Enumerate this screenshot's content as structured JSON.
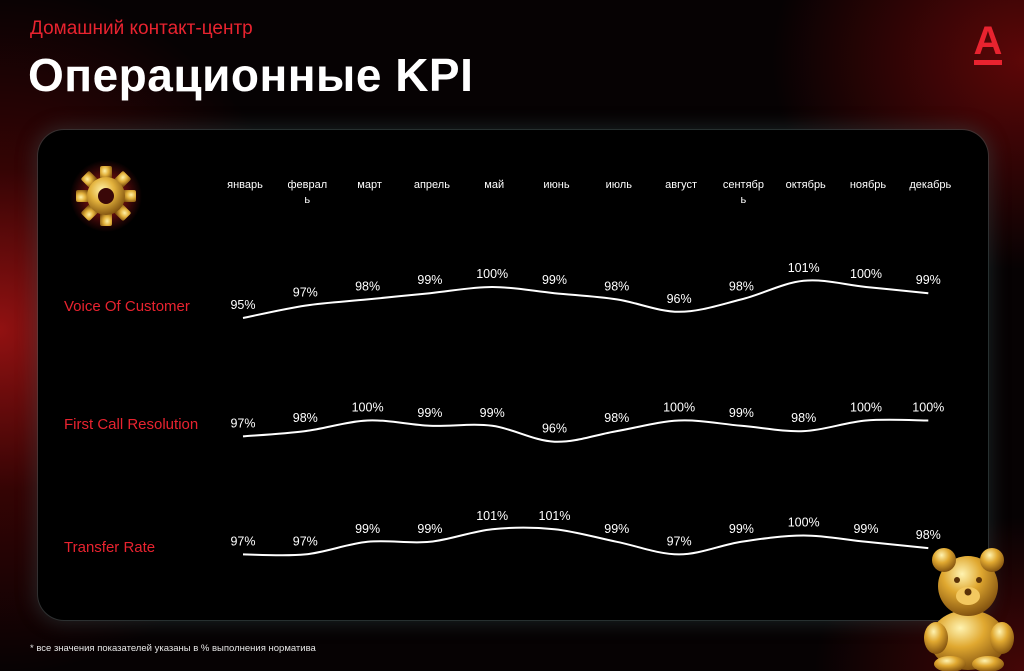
{
  "header": {
    "subtitle": "Домашний контакт-центр",
    "title": "Операционные KPI"
  },
  "brand": {
    "logo": "А",
    "accent": "#e8232f"
  },
  "icons": {
    "gear": "gear-icon",
    "bear": "gold-bear-figure"
  },
  "footnote": "* все значения показателей указаны в % выполнения норматива",
  "chart_data": {
    "type": "line",
    "categories": [
      "январь",
      "февраль",
      "март",
      "апрель",
      "май",
      "июнь",
      "июль",
      "август",
      "сентябрь",
      "октябрь",
      "ноябрь",
      "декабрь"
    ],
    "category_lines": [
      [
        "январь"
      ],
      [
        "феврал",
        "ь"
      ],
      [
        "март"
      ],
      [
        "апрель"
      ],
      [
        "май"
      ],
      [
        "июнь"
      ],
      [
        "июль"
      ],
      [
        "август"
      ],
      [
        "сентябр",
        "ь"
      ],
      [
        "октябрь"
      ],
      [
        "ноябрь"
      ],
      [
        "декабрь"
      ]
    ],
    "series": [
      {
        "name": "Voice Of Customer",
        "values": [
          95,
          97,
          98,
          99,
          100,
          99,
          98,
          96,
          98,
          101,
          100,
          99
        ],
        "labels": [
          "95%",
          "97%",
          "98%",
          "99%",
          "100%",
          "99%",
          "98%",
          "96%",
          "98%",
          "101%",
          "100%",
          "99%"
        ]
      },
      {
        "name": "First Call Resolution",
        "values": [
          97,
          98,
          100,
          99,
          99,
          96,
          98,
          100,
          99,
          98,
          100,
          100
        ],
        "labels": [
          "97%",
          "98%",
          "100%",
          "99%",
          "99%",
          "96%",
          "98%",
          "100%",
          "99%",
          "98%",
          "100%",
          "100%"
        ]
      },
      {
        "name": "Transfer Rate",
        "values": [
          97,
          97,
          99,
          99,
          101,
          101,
          99,
          97,
          99,
          100,
          99,
          98
        ],
        "labels": [
          "97%",
          "97%",
          "99%",
          "99%",
          "101%",
          "101%",
          "99%",
          "97%",
          "99%",
          "100%",
          "99%",
          "98%"
        ]
      }
    ],
    "unit": "%",
    "line_color": "#ffffff",
    "grid": false,
    "legend": "row labels at left"
  }
}
